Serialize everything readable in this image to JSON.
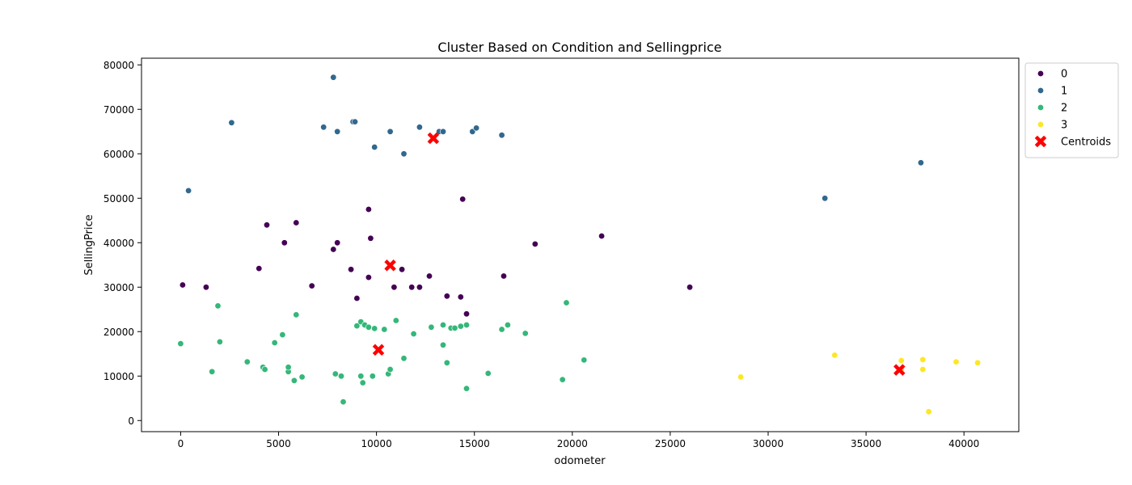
{
  "chart_data": {
    "type": "scatter",
    "title": "Cluster Based on Condition and Sellingprice",
    "xlabel": "odometer",
    "ylabel": "SellingPrice",
    "xlim": [
      -2000,
      42800
    ],
    "ylim": [
      -2500,
      81500
    ],
    "xticks": [
      0,
      5000,
      10000,
      15000,
      20000,
      25000,
      30000,
      35000,
      40000
    ],
    "yticks": [
      0,
      10000,
      20000,
      30000,
      40000,
      50000,
      60000,
      70000,
      80000
    ],
    "legend_position": "outside-top-right",
    "grid": false,
    "series": [
      {
        "name": "0",
        "color": "#440154",
        "points": [
          [
            100,
            30500
          ],
          [
            1300,
            30000
          ],
          [
            4000,
            34200
          ],
          [
            4400,
            44000
          ],
          [
            5300,
            40000
          ],
          [
            5900,
            44500
          ],
          [
            6700,
            30300
          ],
          [
            7800,
            38500
          ],
          [
            8000,
            40000
          ],
          [
            8700,
            34000
          ],
          [
            9000,
            27500
          ],
          [
            9600,
            32200
          ],
          [
            9600,
            47500
          ],
          [
            9700,
            41000
          ],
          [
            10900,
            30000
          ],
          [
            11300,
            34000
          ],
          [
            11800,
            30000
          ],
          [
            12200,
            30000
          ],
          [
            12700,
            32500
          ],
          [
            13600,
            28000
          ],
          [
            14300,
            27800
          ],
          [
            14400,
            49800
          ],
          [
            14600,
            24000
          ],
          [
            16500,
            32500
          ],
          [
            18100,
            39700
          ],
          [
            21500,
            41500
          ],
          [
            26000,
            30000
          ]
        ]
      },
      {
        "name": "1",
        "color": "#31688e",
        "points": [
          [
            400,
            51700
          ],
          [
            2600,
            67000
          ],
          [
            7300,
            66000
          ],
          [
            7800,
            77200
          ],
          [
            8000,
            65000
          ],
          [
            8800,
            67200
          ],
          [
            8900,
            67200
          ],
          [
            9900,
            61500
          ],
          [
            10700,
            65000
          ],
          [
            11400,
            60000
          ],
          [
            12200,
            66000
          ],
          [
            13200,
            65000
          ],
          [
            13400,
            65000
          ],
          [
            14900,
            65000
          ],
          [
            15100,
            65800
          ],
          [
            16400,
            64200
          ],
          [
            32900,
            50000
          ],
          [
            37800,
            58000
          ]
        ]
      },
      {
        "name": "2",
        "color": "#35b779",
        "points": [
          [
            0,
            17300
          ],
          [
            1600,
            11000
          ],
          [
            1900,
            25800
          ],
          [
            2000,
            17700
          ],
          [
            3400,
            13200
          ],
          [
            4200,
            12000
          ],
          [
            4300,
            11500
          ],
          [
            4800,
            17500
          ],
          [
            5200,
            19300
          ],
          [
            5500,
            11000
          ],
          [
            5500,
            12000
          ],
          [
            5800,
            9000
          ],
          [
            5900,
            23800
          ],
          [
            6200,
            9800
          ],
          [
            7900,
            10500
          ],
          [
            8200,
            10000
          ],
          [
            8300,
            4200
          ],
          [
            9000,
            21300
          ],
          [
            9200,
            22200
          ],
          [
            9200,
            10000
          ],
          [
            9300,
            8500
          ],
          [
            9400,
            21500
          ],
          [
            9600,
            21000
          ],
          [
            9800,
            10000
          ],
          [
            9900,
            20700
          ],
          [
            10400,
            20500
          ],
          [
            10600,
            10500
          ],
          [
            10700,
            11500
          ],
          [
            11000,
            22500
          ],
          [
            11400,
            14000
          ],
          [
            11900,
            19500
          ],
          [
            12800,
            21000
          ],
          [
            13400,
            17000
          ],
          [
            13400,
            21500
          ],
          [
            13600,
            13000
          ],
          [
            13800,
            20800
          ],
          [
            14000,
            20800
          ],
          [
            14300,
            21200
          ],
          [
            14600,
            7200
          ],
          [
            14600,
            21500
          ],
          [
            15700,
            10600
          ],
          [
            16400,
            20500
          ],
          [
            16700,
            21500
          ],
          [
            17600,
            19600
          ],
          [
            19500,
            9200
          ],
          [
            19700,
            26500
          ],
          [
            20600,
            13600
          ]
        ]
      },
      {
        "name": "3",
        "color": "#fde725",
        "points": [
          [
            28600,
            9800
          ],
          [
            33400,
            14700
          ],
          [
            36800,
            13500
          ],
          [
            36800,
            11500
          ],
          [
            37900,
            13700
          ],
          [
            37900,
            11500
          ],
          [
            38200,
            2000
          ],
          [
            39600,
            13200
          ],
          [
            40700,
            13000
          ]
        ]
      }
    ],
    "centroids": {
      "name": "Centroids",
      "color": "#ff0000",
      "points": [
        [
          12900,
          63500
        ],
        [
          10700,
          34900
        ],
        [
          10100,
          15900
        ],
        [
          36700,
          11400
        ]
      ]
    }
  }
}
